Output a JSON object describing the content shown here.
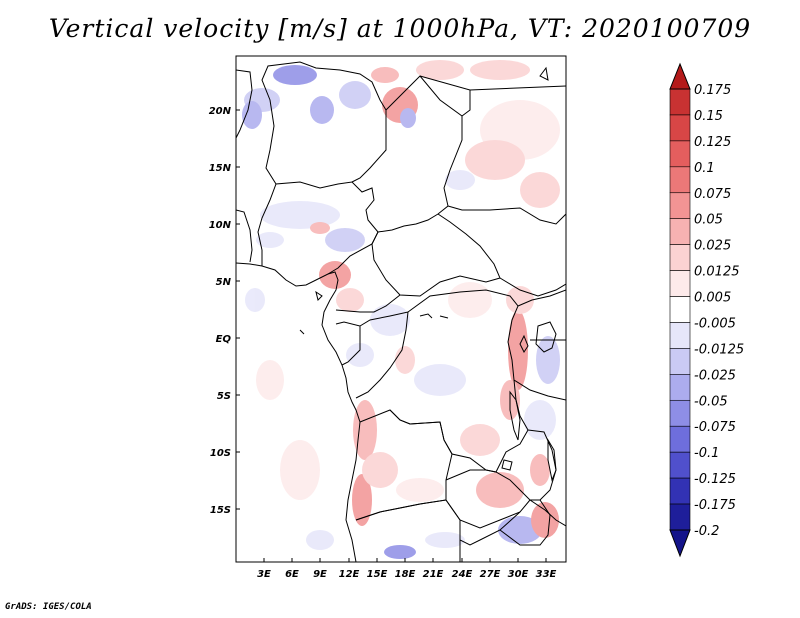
{
  "title": "Vertical velocity [m/s] at 1000hPa, VT: 2020100709",
  "footer": "GrADS: IGES/COLA",
  "map": {
    "lat_labels": [
      "20N",
      "15N",
      "10N",
      "5N",
      "EQ",
      "5S",
      "10S",
      "15S"
    ],
    "lon_labels": [
      "3E",
      "6E",
      "9E",
      "12E",
      "15E",
      "18E",
      "21E",
      "24E",
      "27E",
      "30E",
      "33E"
    ]
  },
  "colorbar": {
    "labels": [
      "0.175",
      "0.15",
      "0.125",
      "0.1",
      "0.075",
      "0.05",
      "0.025",
      "0.0125",
      "0.005",
      "-0.005",
      "-0.0125",
      "-0.025",
      "-0.05",
      "-0.075",
      "-0.1",
      "-0.125",
      "-0.175",
      "-0.2"
    ],
    "colors": [
      "#b41a1a",
      "#c83232",
      "#d84646",
      "#e45e5e",
      "#ec7878",
      "#f29494",
      "#f7b2b2",
      "#fbd2d2",
      "#fdeaea",
      "#ffffff",
      "#e6e6fa",
      "#cacaf4",
      "#acacee",
      "#8e8ee6",
      "#6e6edc",
      "#5050cc",
      "#3232b4",
      "#1e1e9a",
      "#14148a"
    ]
  }
}
